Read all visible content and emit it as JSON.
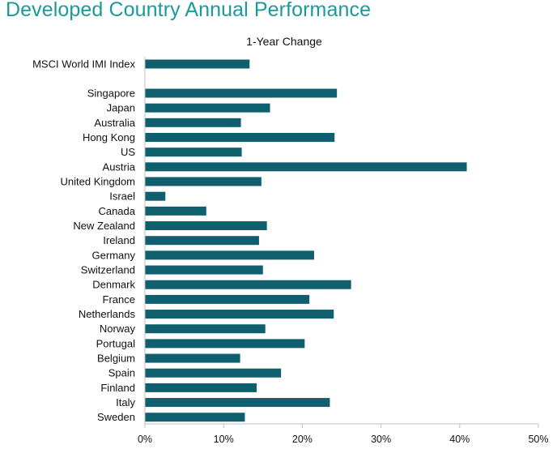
{
  "page": {
    "title": "Developed Country Annual Performance"
  },
  "colors": {
    "title": "#1a9a9a",
    "bar": "#0f5f6e",
    "axis": "#bfbfbf",
    "text": "#111111"
  },
  "chart_data": {
    "type": "bar",
    "orientation": "horizontal",
    "title": "1-Year Change",
    "xlabel": "",
    "ylabel": "",
    "value_format": "percent",
    "xlim": [
      0,
      50
    ],
    "x_ticks": [
      "0%",
      "10%",
      "20%",
      "30%",
      "40%",
      "50%"
    ],
    "grid": false,
    "legend": "none",
    "categories": [
      "MSCI World IMI Index",
      "Singapore",
      "Japan",
      "Australia",
      "Hong Kong",
      "US",
      "Austria",
      "United Kingdom",
      "Israel",
      "Canada",
      "New Zealand",
      "Ireland",
      "Germany",
      "Switzerland",
      "Denmark",
      "France",
      "Netherlands",
      "Norway",
      "Portugal",
      "Belgium",
      "Spain",
      "Finland",
      "Italy",
      "Sweden"
    ],
    "values": [
      13.3,
      24.4,
      15.9,
      12.2,
      24.1,
      12.3,
      40.9,
      14.8,
      2.6,
      7.8,
      15.5,
      14.5,
      21.5,
      15.0,
      26.2,
      20.9,
      24.0,
      15.3,
      20.3,
      12.1,
      17.3,
      14.2,
      23.5,
      12.7
    ]
  }
}
